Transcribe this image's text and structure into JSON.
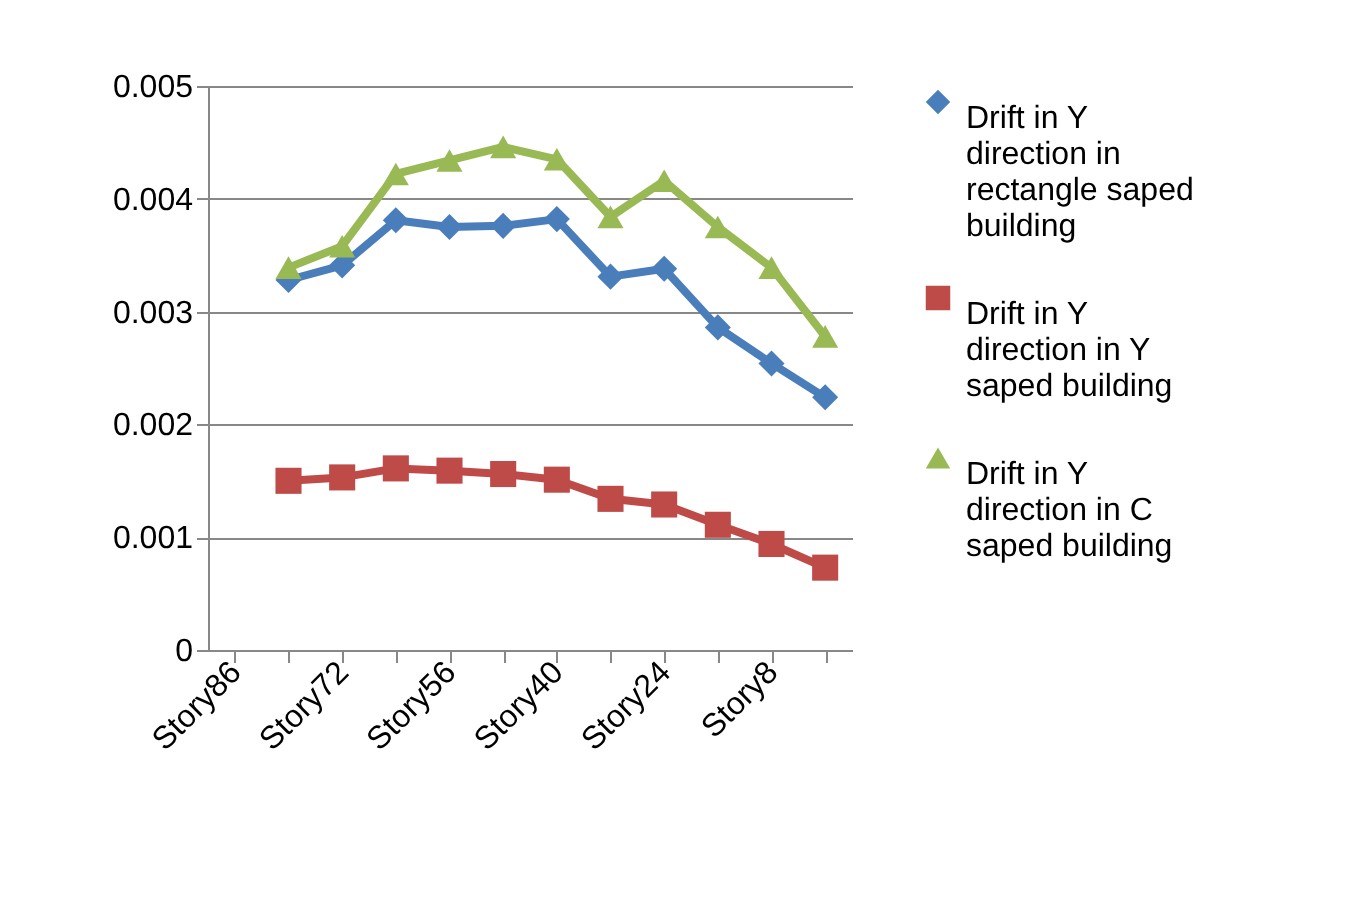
{
  "chart_data": {
    "type": "line",
    "categories": [
      "Story86",
      null,
      "Story72",
      null,
      "Story56",
      null,
      "Story40",
      null,
      "Story24",
      null,
      "Story8",
      null
    ],
    "series": [
      {
        "name": "Drift in Y direction in rectangle saped building",
        "color": "#4a7ebb",
        "marker": "diamond",
        "values": [
          null,
          0.00328,
          0.00341,
          0.00381,
          0.00375,
          0.00376,
          0.00382,
          0.00331,
          0.00338,
          0.00286,
          0.00254,
          0.00224
        ]
      },
      {
        "name": "Drift in Y direction in Y saped building",
        "color": "#be4b48",
        "marker": "square",
        "values": [
          null,
          0.0015,
          0.00153,
          0.00161,
          0.00159,
          0.00156,
          0.00151,
          0.00134,
          0.00129,
          0.00111,
          0.00094,
          0.00073
        ]
      },
      {
        "name": "Drift in Y direction in C saped building",
        "color": "#98b954",
        "marker": "triangle",
        "values": [
          null,
          0.00339,
          0.00358,
          0.00422,
          0.00434,
          0.00446,
          0.00435,
          0.00384,
          0.00416,
          0.00375,
          0.00339,
          0.00278
        ]
      }
    ],
    "ylim": [
      0,
      0.005
    ],
    "yticks": [
      0,
      0.001,
      0.002,
      0.003,
      0.004,
      0.005
    ],
    "grid": "y",
    "legend": "right",
    "line_style": "solid"
  }
}
